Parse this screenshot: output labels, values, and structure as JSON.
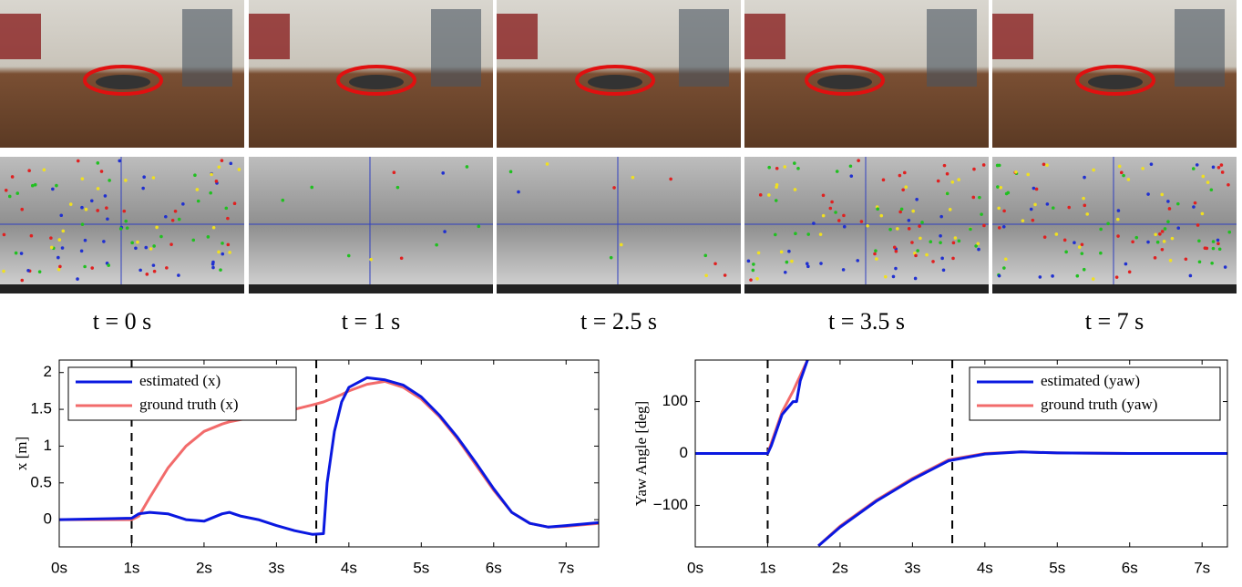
{
  "figure": {
    "captions": [
      "t = 0 s",
      "t = 1 s",
      "t = 2.5 s",
      "t = 3.5 s",
      "t = 7 s"
    ]
  },
  "chart_data": [
    {
      "type": "line",
      "ylabel": "x [m]",
      "legend": "upper-left",
      "xlim": [
        0,
        7.45
      ],
      "ylim": [
        -0.37,
        2.17
      ],
      "xticks": [
        {
          "value": 0,
          "label": "0s"
        },
        {
          "value": 1,
          "label": "1s"
        },
        {
          "value": 2,
          "label": "2s"
        },
        {
          "value": 3,
          "label": "3s"
        },
        {
          "value": 4,
          "label": "4s"
        },
        {
          "value": 5,
          "label": "5s"
        },
        {
          "value": 6,
          "label": "6s"
        },
        {
          "value": 7,
          "label": "7s"
        }
      ],
      "yticks": [
        0,
        0.5,
        1,
        1.5,
        2
      ],
      "vlines": [
        1,
        3.55
      ],
      "x": [
        0,
        1,
        1.1,
        1.25,
        1.5,
        1.75,
        2,
        2.25,
        2.35,
        2.5,
        2.75,
        3,
        3.25,
        3.5,
        3.65,
        3.7,
        3.8,
        3.9,
        4,
        4.25,
        4.5,
        4.75,
        5,
        5.25,
        5.5,
        5.75,
        6,
        6.25,
        6.5,
        6.75,
        7,
        7.45
      ],
      "series": [
        {
          "name": "estimated (x)",
          "color": "#0a18e0",
          "values": [
            0,
            0.02,
            0.08,
            0.1,
            0.08,
            0.0,
            -0.02,
            0.08,
            0.1,
            0.05,
            0.0,
            -0.08,
            -0.15,
            -0.2,
            -0.19,
            0.5,
            1.2,
            1.6,
            1.8,
            1.93,
            1.9,
            1.83,
            1.67,
            1.42,
            1.12,
            0.78,
            0.42,
            0.1,
            -0.05,
            -0.1,
            -0.08,
            -0.04
          ]
        },
        {
          "name": "ground truth (x)",
          "color": "#f26b6b",
          "values": [
            0,
            0,
            0.05,
            0.3,
            0.7,
            1.0,
            1.2,
            1.3,
            1.33,
            1.36,
            1.4,
            1.45,
            1.5,
            1.56,
            1.6,
            1.62,
            1.66,
            1.7,
            1.75,
            1.84,
            1.88,
            1.8,
            1.64,
            1.4,
            1.1,
            0.75,
            0.4,
            0.1,
            -0.05,
            -0.1,
            -0.09,
            -0.05
          ]
        }
      ]
    },
    {
      "type": "line",
      "ylabel": "Yaw Angle [deg]",
      "legend": "upper-right",
      "xlim": [
        0,
        7.35
      ],
      "ylim": [
        -180,
        180
      ],
      "xticks": [
        {
          "value": 0,
          "label": "0s"
        },
        {
          "value": 1,
          "label": "1s"
        },
        {
          "value": 2,
          "label": "2s"
        },
        {
          "value": 3,
          "label": "3s"
        },
        {
          "value": 4,
          "label": "4s"
        },
        {
          "value": 5,
          "label": "5s"
        },
        {
          "value": 6,
          "label": "6s"
        },
        {
          "value": 7,
          "label": "7s"
        }
      ],
      "yticks": [
        {
          "value": -100,
          "label": "−100"
        },
        0,
        100
      ],
      "vlines": [
        1,
        3.55
      ],
      "x": [
        0,
        1,
        1.05,
        1.2,
        1.35,
        1.4,
        1.45,
        1.55,
        1.6,
        1.7,
        2,
        2.5,
        3,
        3.5,
        4,
        4.5,
        5,
        6,
        7,
        7.35
      ],
      "series": [
        {
          "name": "estimated (yaw)",
          "color": "#0a18e0",
          "values": [
            0,
            0,
            15,
            75,
            100,
            100,
            140,
            180,
            null,
            -178,
            -142,
            -92,
            -50,
            -14,
            -1,
            3,
            1,
            0,
            0,
            0
          ]
        },
        {
          "name": "ground truth (yaw)",
          "color": "#f26b6b",
          "values": [
            0,
            0,
            20,
            80,
            120,
            135,
            150,
            180,
            null,
            -178,
            -140,
            -90,
            -48,
            -12,
            0,
            3,
            1,
            0,
            0,
            0
          ]
        }
      ]
    }
  ]
}
